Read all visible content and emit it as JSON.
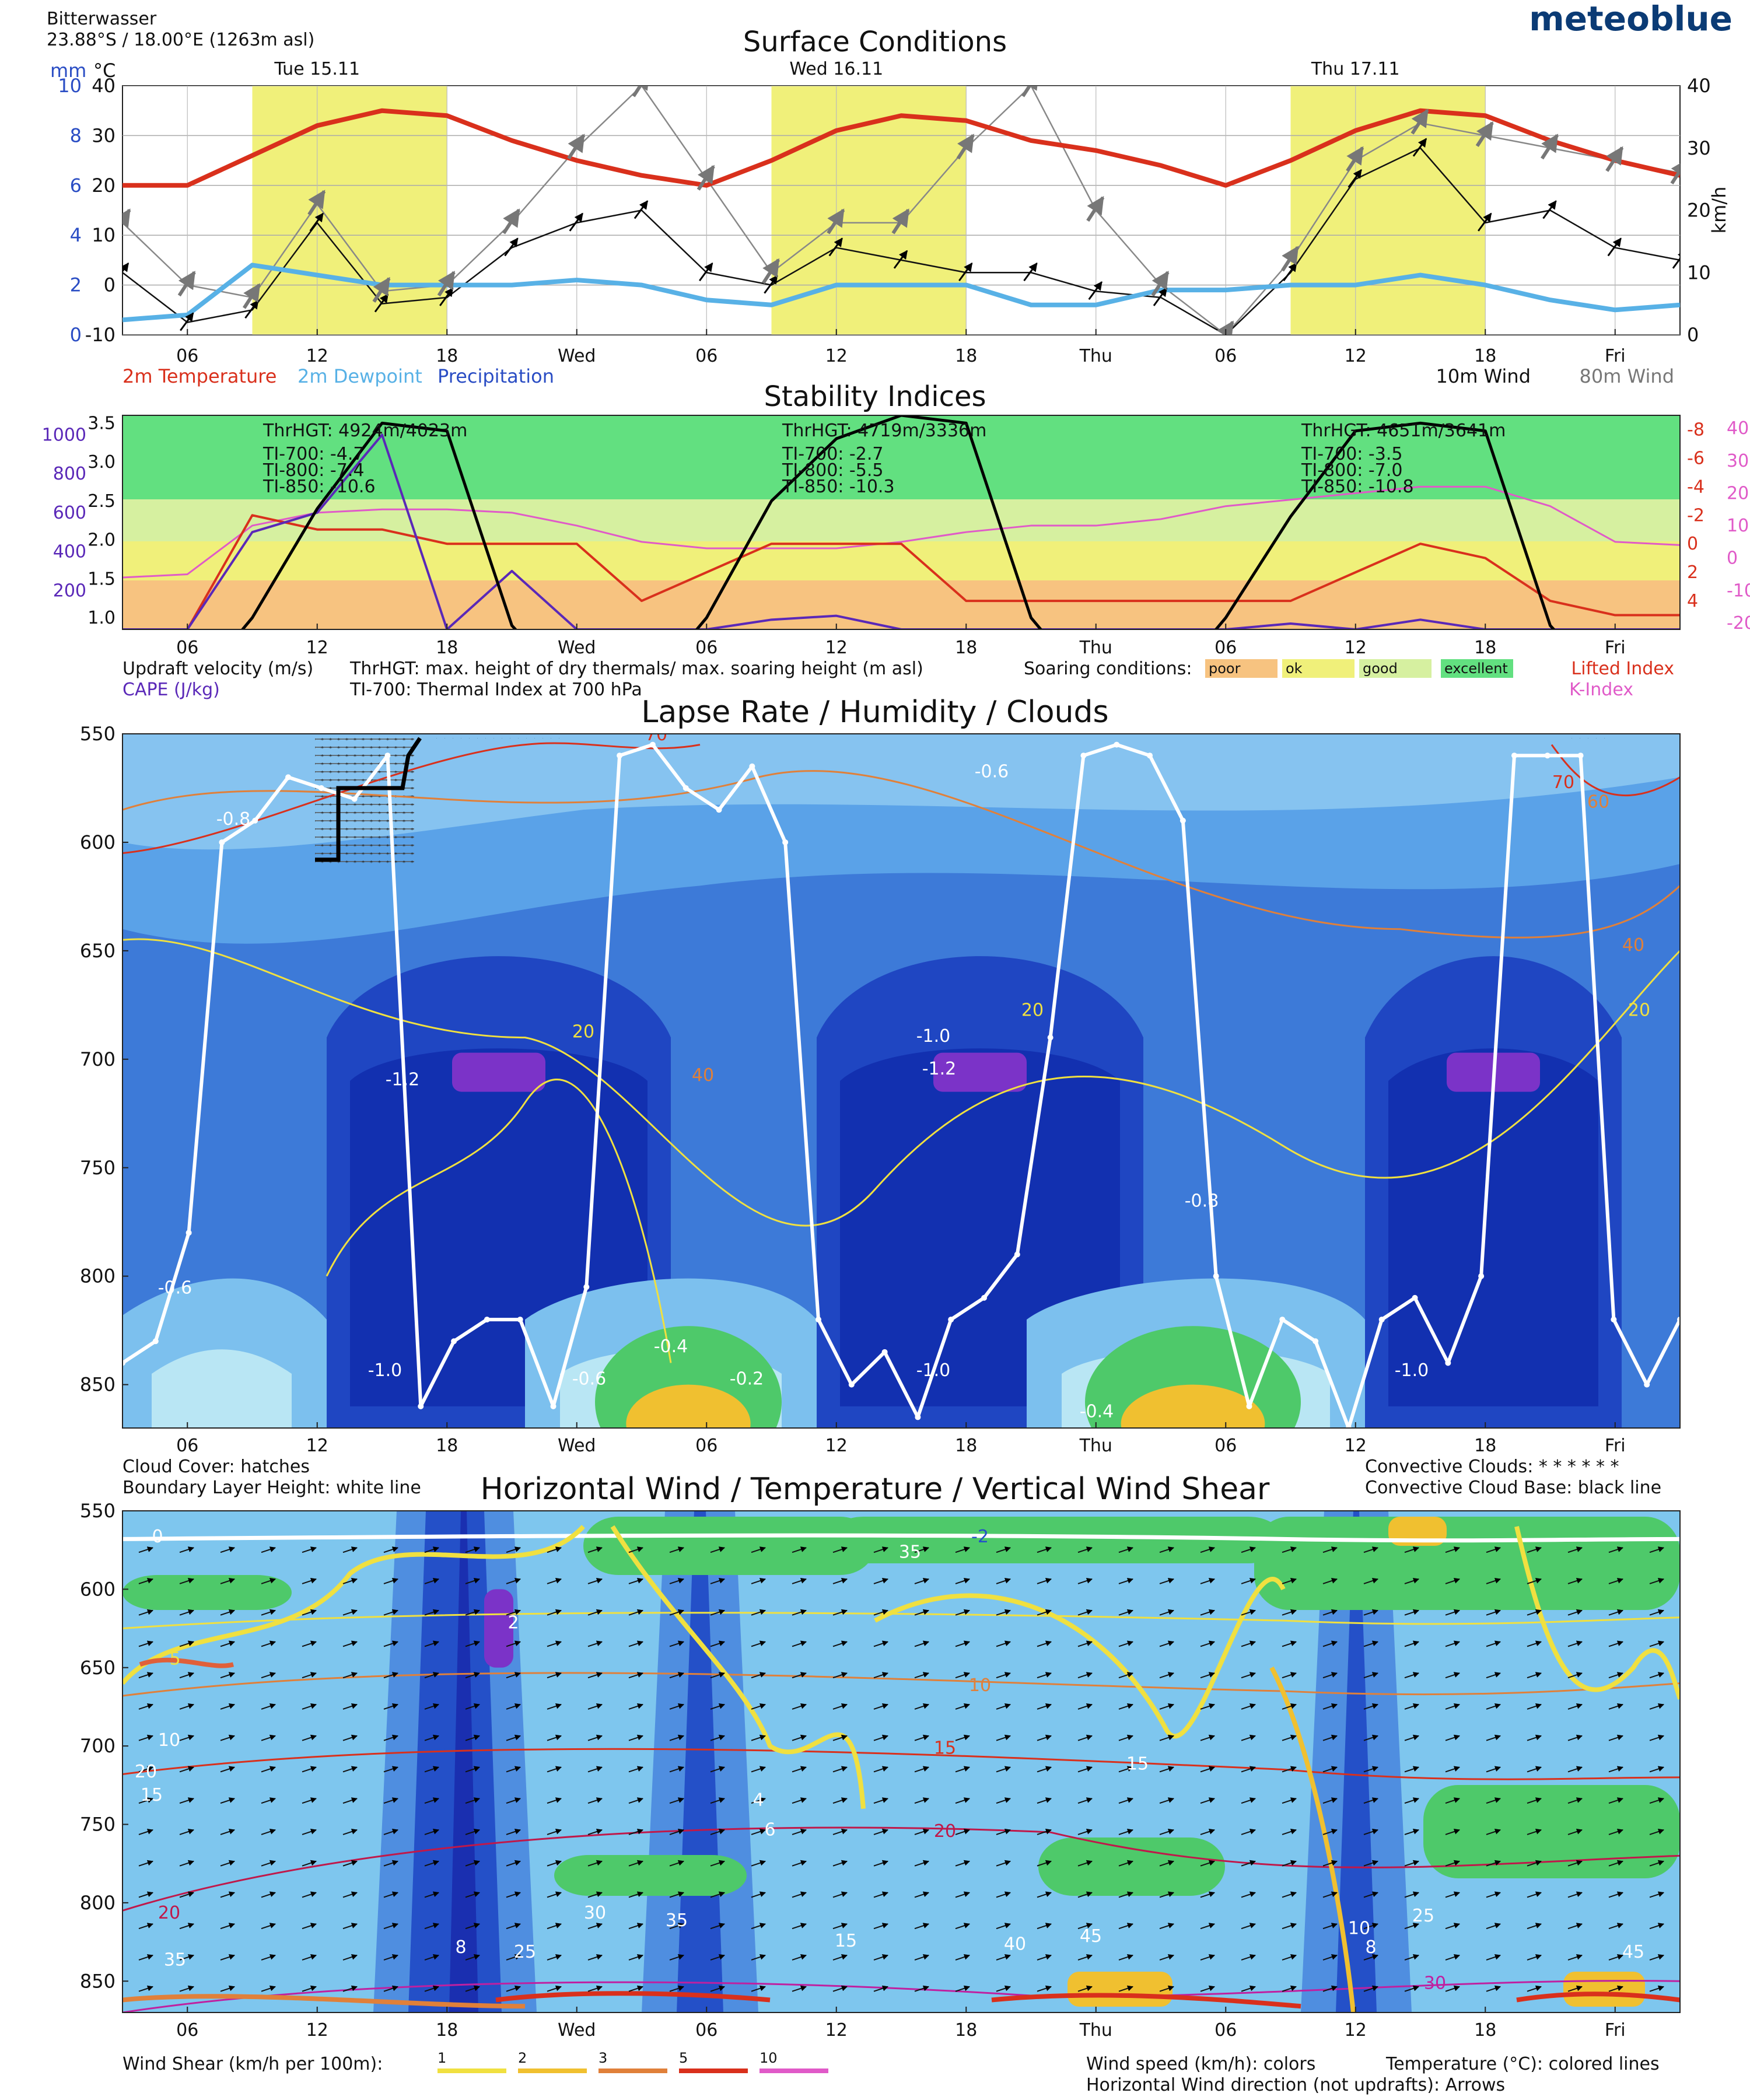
{
  "header": {
    "location": "Bitterwasser",
    "coords": "23.88°S / 18.00°E (1263m asl)",
    "logo": "meteoblue"
  },
  "colors": {
    "temp": "#d9301c",
    "dew": "#58b1e6",
    "precip": "#2a4dc4",
    "daylight": "#f0f07a",
    "excellent": "#62e080",
    "good": "#d6f0a0",
    "ok": "#f0f07a",
    "poor": "#f7c380",
    "cape": "#5a28b8",
    "kindex": "#e05ac8",
    "lifted": "#d9301c"
  },
  "panels": {
    "surface": {
      "title": "Surface Conditions",
      "days": [
        "Tue 15.11",
        "Wed 16.11",
        "Thu 17.11"
      ],
      "left_units_mm": "mm",
      "left_units_c": "°C",
      "mm_ticks": [
        "10",
        "8",
        "6",
        "4",
        "2",
        "0"
      ],
      "c_ticks": [
        "40",
        "30",
        "20",
        "10",
        "0",
        "-10"
      ],
      "right_ticks": [
        "40",
        "30",
        "20",
        "10",
        "0"
      ],
      "right_unit": "km/h",
      "x_ticks": [
        "06",
        "12",
        "18",
        "Wed",
        "06",
        "12",
        "18",
        "Thu",
        "06",
        "12",
        "18",
        "Fri"
      ],
      "legend_left": [
        "2m Temperature",
        "2m Dewpoint",
        "Precipitation"
      ],
      "legend_right": [
        "10m Wind",
        "80m Wind"
      ]
    },
    "stability": {
      "title": "Stability Indices",
      "left_ticks_a": [
        "3.5",
        "3.0",
        "2.5",
        "2.0",
        "1.5",
        "1.0"
      ],
      "left_ticks_b": [
        "1000",
        "800",
        "600",
        "400",
        "200"
      ],
      "right_ticks_li": [
        "-8",
        "-6",
        "-4",
        "-2",
        "0",
        "2",
        "4"
      ],
      "right_ticks_k": [
        "40",
        "30",
        "20",
        "10",
        "0",
        "-10",
        "-20"
      ],
      "thermals": [
        {
          "h": "ThrHGT: 4924m/4023m",
          "t700": "TI-700: -4.7",
          "t800": "TI-800: -7.4",
          "t850": "TI-850: -10.6"
        },
        {
          "h": "ThrHGT: 4719m/3336m",
          "t700": "TI-700: -2.7",
          "t800": "TI-800: -5.5",
          "t850": "TI-850: -10.3"
        },
        {
          "h": "ThrHGT: 4651m/3641m",
          "t700": "TI-700: -3.5",
          "t800": "TI-800: -7.0",
          "t850": "TI-850: -10.8"
        }
      ],
      "legend": {
        "updraft": "Updraft velocity (m/s)",
        "cape": "CAPE (J/kg)",
        "thrhgt": "ThrHGT: max. height of dry thermals/ max. soaring height (m asl)",
        "ti700": "TI-700: Thermal Index at 700 hPa",
        "soaring": "Soaring conditions:",
        "classes": [
          "poor",
          "ok",
          "good",
          "excellent"
        ],
        "lifted": "Lifted Index",
        "kindex": "K-Index"
      }
    },
    "lapse": {
      "title": "Lapse Rate / Humidity / Clouds",
      "y_ticks": [
        "550",
        "600",
        "650",
        "700",
        "750",
        "800",
        "850"
      ],
      "labels": [
        "-0.8",
        "-1.0",
        "-1.2",
        "-0.6",
        "-0.4",
        "-0.2",
        "20",
        "40",
        "70",
        "60"
      ],
      "legend_left": [
        "Cloud Cover: hatches",
        "Boundary Layer Height: white line"
      ],
      "legend_right": [
        "Convective Clouds: * * * * * *",
        "Convective Cloud Base: black line"
      ]
    },
    "wind": {
      "title": "Horizontal Wind / Temperature / Vertical Wind Shear",
      "y_ticks": [
        "550",
        "600",
        "650",
        "700",
        "750",
        "800",
        "850"
      ],
      "labels": [
        "10",
        "15",
        "20",
        "25",
        "30",
        "35",
        "40",
        "45",
        "2",
        "4",
        "6",
        "8",
        "0",
        "5",
        "-2"
      ],
      "legend_shear": "Wind Shear (km/h per 100m):",
      "shear_classes": [
        "1",
        "2",
        "3",
        "5",
        "10"
      ],
      "legend_right": [
        "Wind speed (km/h): colors",
        "Temperature (°C): colored lines",
        "Horizontal Wind direction (not updrafts): Arrows"
      ]
    }
  },
  "chart_data": [
    {
      "type": "line",
      "title": "Surface Conditions",
      "x": [
        "03",
        "06",
        "09",
        "12",
        "15",
        "18",
        "21",
        "Wed",
        "03",
        "06",
        "09",
        "12",
        "15",
        "18",
        "21",
        "Thu",
        "03",
        "06",
        "09",
        "12",
        "15",
        "18",
        "21",
        "Fri",
        "03"
      ],
      "series": [
        {
          "name": "2m Temperature",
          "unit": "°C",
          "values": [
            20,
            20,
            26,
            32,
            35,
            34,
            29,
            25,
            22,
            20,
            25,
            31,
            34,
            33,
            29,
            27,
            24,
            20,
            25,
            31,
            35,
            34,
            29,
            25,
            22
          ]
        },
        {
          "name": "2m Dewpoint",
          "unit": "°C",
          "values": [
            -7,
            -6,
            4,
            2,
            0,
            0,
            0,
            1,
            0,
            -3,
            -4,
            0,
            0,
            0,
            -4,
            -4,
            -1,
            -1,
            0,
            0,
            2,
            0,
            -3,
            -5,
            -4
          ]
        },
        {
          "name": "10m Wind",
          "unit": "km/h",
          "values": [
            10,
            2,
            4,
            18,
            5,
            6,
            14,
            18,
            20,
            10,
            8,
            14,
            12,
            10,
            10,
            7,
            6,
            0,
            10,
            25,
            30,
            18,
            20,
            14,
            12
          ]
        },
        {
          "name": "80m Wind",
          "unit": "km/h",
          "values": [
            18,
            8,
            6,
            21,
            7,
            8,
            18,
            30,
            40,
            25,
            10,
            18,
            18,
            30,
            40,
            20,
            8,
            0,
            12,
            28,
            34,
            32,
            30,
            28,
            26
          ]
        }
      ],
      "ylim_temp": [
        -10,
        40
      ],
      "ylim_wind": [
        0,
        40
      ],
      "ylim_precip": [
        0,
        10
      ]
    },
    {
      "type": "line",
      "title": "Stability Indices",
      "x": [
        "03",
        "06",
        "09",
        "12",
        "15",
        "18",
        "21",
        "Wed",
        "03",
        "06",
        "09",
        "12",
        "15",
        "18",
        "21",
        "Thu",
        "03",
        "06",
        "09",
        "12",
        "15",
        "18",
        "21",
        "Fri",
        "03"
      ],
      "series": [
        {
          "name": "Updraft velocity (m/s)",
          "values": [
            0,
            0,
            1.0,
            2.4,
            3.5,
            3.4,
            0.9,
            0,
            0,
            1.0,
            2.5,
            3.3,
            3.6,
            3.5,
            1.0,
            0,
            0,
            1.0,
            2.3,
            3.4,
            3.5,
            3.4,
            0.9,
            0,
            0
          ]
        },
        {
          "name": "CAPE (J/kg)",
          "values": [
            0,
            0,
            500,
            600,
            1000,
            0,
            300,
            0,
            0,
            0,
            50,
            70,
            0,
            0,
            0,
            0,
            0,
            0,
            30,
            0,
            50,
            0,
            0,
            0,
            0
          ]
        },
        {
          "name": "Lifted Index",
          "values": [
            6,
            6,
            -2,
            -1,
            -1,
            0,
            0,
            0,
            4,
            2,
            0,
            0,
            0,
            4,
            4,
            4,
            4,
            4,
            4,
            2,
            0,
            1,
            4,
            5,
            5
          ]
        },
        {
          "name": "K-Index",
          "values": [
            -6,
            -5,
            10,
            14,
            15,
            15,
            14,
            10,
            5,
            3,
            3,
            3,
            5,
            8,
            10,
            10,
            12,
            16,
            18,
            20,
            22,
            22,
            16,
            5,
            4
          ]
        }
      ],
      "soaring_bands": [
        "excellent",
        "good",
        "ok",
        "poor"
      ]
    },
    {
      "type": "heatmap",
      "title": "Lapse Rate / Humidity / Clouds",
      "y": [
        550,
        600,
        650,
        700,
        750,
        800,
        850
      ],
      "x": [
        "06",
        "12",
        "18",
        "Wed",
        "06",
        "12",
        "18",
        "Thu",
        "06",
        "12",
        "18",
        "Fri"
      ],
      "lapse_rate_levels": [
        -1.2,
        -1.0,
        -0.8,
        -0.6,
        -0.4,
        -0.2
      ],
      "humidity_contours": [
        20,
        40,
        60,
        70
      ],
      "boundary_layer_height_hpa": [
        840,
        830,
        780,
        600,
        590,
        570,
        575,
        580,
        560,
        860,
        830,
        820,
        820,
        860,
        805,
        560,
        555,
        575,
        585,
        565,
        600,
        820,
        850,
        835,
        865,
        820,
        810,
        790,
        690,
        560,
        555,
        560,
        590,
        800,
        860,
        820,
        830,
        870,
        820,
        810,
        840,
        800,
        560,
        560,
        560,
        820,
        850,
        820
      ]
    },
    {
      "type": "heatmap",
      "title": "Horizontal Wind / Temperature / Vertical Wind Shear",
      "y": [
        550,
        600,
        650,
        700,
        750,
        800,
        850
      ],
      "x": [
        "06",
        "12",
        "18",
        "Wed",
        "06",
        "12",
        "18",
        "Thu",
        "06",
        "12",
        "18",
        "Fri"
      ],
      "wind_speed_levels": [
        2,
        4,
        6,
        8,
        10,
        15,
        20,
        25,
        30,
        35,
        40,
        45
      ],
      "temperature_contours": [
        0,
        5,
        10,
        15,
        20,
        30
      ],
      "shear_levels": [
        1,
        2,
        3,
        5,
        10
      ]
    }
  ]
}
